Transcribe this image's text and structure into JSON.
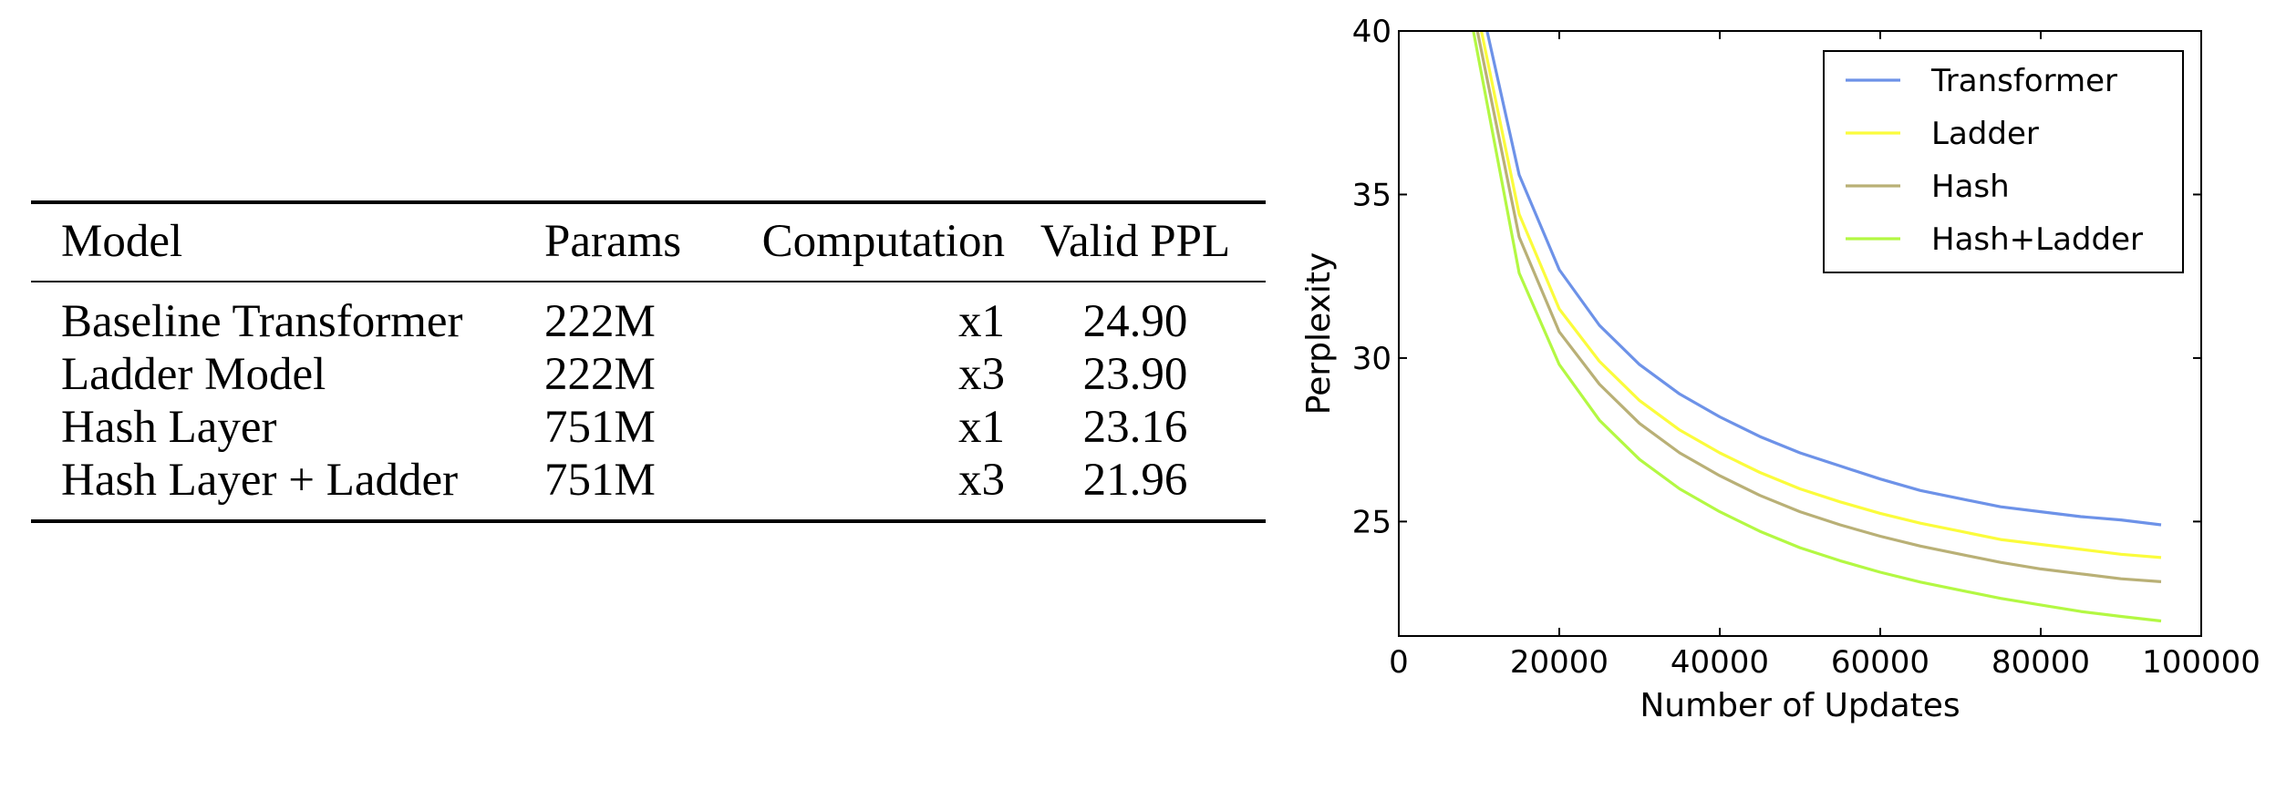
{
  "table": {
    "headers": {
      "model": "Model",
      "params": "Params",
      "computation": "Computation",
      "valid_ppl": "Valid PPL"
    },
    "rows": [
      {
        "model": "Baseline Transformer",
        "params": "222M",
        "computation": "x1",
        "valid_ppl": "24.90"
      },
      {
        "model": "Ladder Model",
        "params": "222M",
        "computation": "x3",
        "valid_ppl": "23.90"
      },
      {
        "model": "Hash Layer",
        "params": "751M",
        "computation": "x1",
        "valid_ppl": "23.16"
      },
      {
        "model": "Hash Layer + Ladder",
        "params": "751M",
        "computation": "x3",
        "valid_ppl": "21.96"
      }
    ]
  },
  "chart_data": {
    "type": "line",
    "title": "",
    "xlabel": "Number of Updates",
    "ylabel": "Perplexity",
    "xlim": [
      0,
      100000
    ],
    "ylim": [
      21.5,
      40
    ],
    "xticks": [
      0,
      20000,
      40000,
      60000,
      80000,
      100000
    ],
    "yticks": [
      25,
      30,
      35,
      40
    ],
    "grid": false,
    "legend_position": "top-right",
    "series": [
      {
        "name": "Transformer",
        "color": "#6d92e8",
        "x": [
          11000,
          15000,
          20000,
          25000,
          30000,
          35000,
          40000,
          45000,
          50000,
          55000,
          60000,
          65000,
          70000,
          75000,
          80000,
          85000,
          90000,
          95000
        ],
        "y": [
          40.0,
          35.6,
          32.7,
          31.0,
          29.8,
          28.9,
          28.2,
          27.6,
          27.1,
          26.7,
          26.3,
          25.95,
          25.7,
          25.45,
          25.3,
          25.15,
          25.05,
          24.9
        ]
      },
      {
        "name": "Ladder",
        "color": "#fbfc3c",
        "x": [
          10300,
          15000,
          20000,
          25000,
          30000,
          35000,
          40000,
          45000,
          50000,
          55000,
          60000,
          65000,
          70000,
          75000,
          80000,
          85000,
          90000,
          95000
        ],
        "y": [
          40.0,
          34.4,
          31.5,
          29.9,
          28.7,
          27.8,
          27.1,
          26.5,
          26.0,
          25.6,
          25.25,
          24.95,
          24.7,
          24.45,
          24.3,
          24.15,
          24.0,
          23.9
        ]
      },
      {
        "name": "Hash",
        "color": "#b9b076",
        "x": [
          9800,
          15000,
          20000,
          25000,
          30000,
          35000,
          40000,
          45000,
          50000,
          55000,
          60000,
          65000,
          70000,
          75000,
          80000,
          85000,
          90000,
          95000
        ],
        "y": [
          40.0,
          33.7,
          30.8,
          29.2,
          28.0,
          27.1,
          26.4,
          25.8,
          25.3,
          24.9,
          24.55,
          24.25,
          24.0,
          23.75,
          23.55,
          23.4,
          23.25,
          23.16
        ]
      },
      {
        "name": "Hash+Ladder",
        "color": "#b3f843",
        "x": [
          9300,
          15000,
          20000,
          25000,
          30000,
          35000,
          40000,
          45000,
          50000,
          55000,
          60000,
          65000,
          70000,
          75000,
          80000,
          85000,
          90000,
          95000
        ],
        "y": [
          40.0,
          32.6,
          29.8,
          28.1,
          26.9,
          26.0,
          25.3,
          24.7,
          24.2,
          23.8,
          23.45,
          23.15,
          22.9,
          22.65,
          22.45,
          22.25,
          22.1,
          21.96
        ]
      }
    ]
  }
}
